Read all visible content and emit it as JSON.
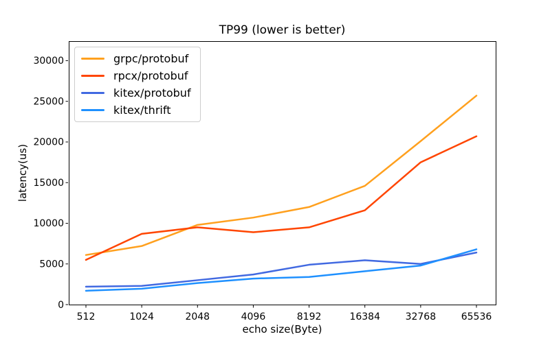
{
  "chart_data": {
    "type": "line",
    "title": "TP99 (lower is better)",
    "xlabel": "echo size(Byte)",
    "ylabel": "latency(us)",
    "categories": [
      "512",
      "1024",
      "2048",
      "4096",
      "8192",
      "16384",
      "32768",
      "65536"
    ],
    "yticks": [
      0,
      5000,
      10000,
      15000,
      20000,
      25000,
      30000
    ],
    "ylim": [
      0,
      32400
    ],
    "grid": false,
    "legend_position": "upper-left",
    "axis_color": "#000000",
    "background_color": "#ffffff",
    "series": [
      {
        "name": "grpc/protobuf",
        "color": "#FFA01E",
        "values": [
          6100,
          7200,
          9800,
          10700,
          12000,
          14600,
          20100,
          25700
        ]
      },
      {
        "name": "rpcx/protobuf",
        "color": "#FF4500",
        "values": [
          5500,
          8700,
          9500,
          8900,
          9500,
          11600,
          17500,
          20700
        ]
      },
      {
        "name": "kitex/protobuf",
        "color": "#4169E1",
        "values": [
          2200,
          2300,
          3000,
          3700,
          4900,
          5450,
          5000,
          6400
        ]
      },
      {
        "name": "kitex/thrift",
        "color": "#1E90FF",
        "values": [
          1700,
          1950,
          2650,
          3200,
          3400,
          4100,
          4800,
          6800
        ]
      }
    ]
  }
}
